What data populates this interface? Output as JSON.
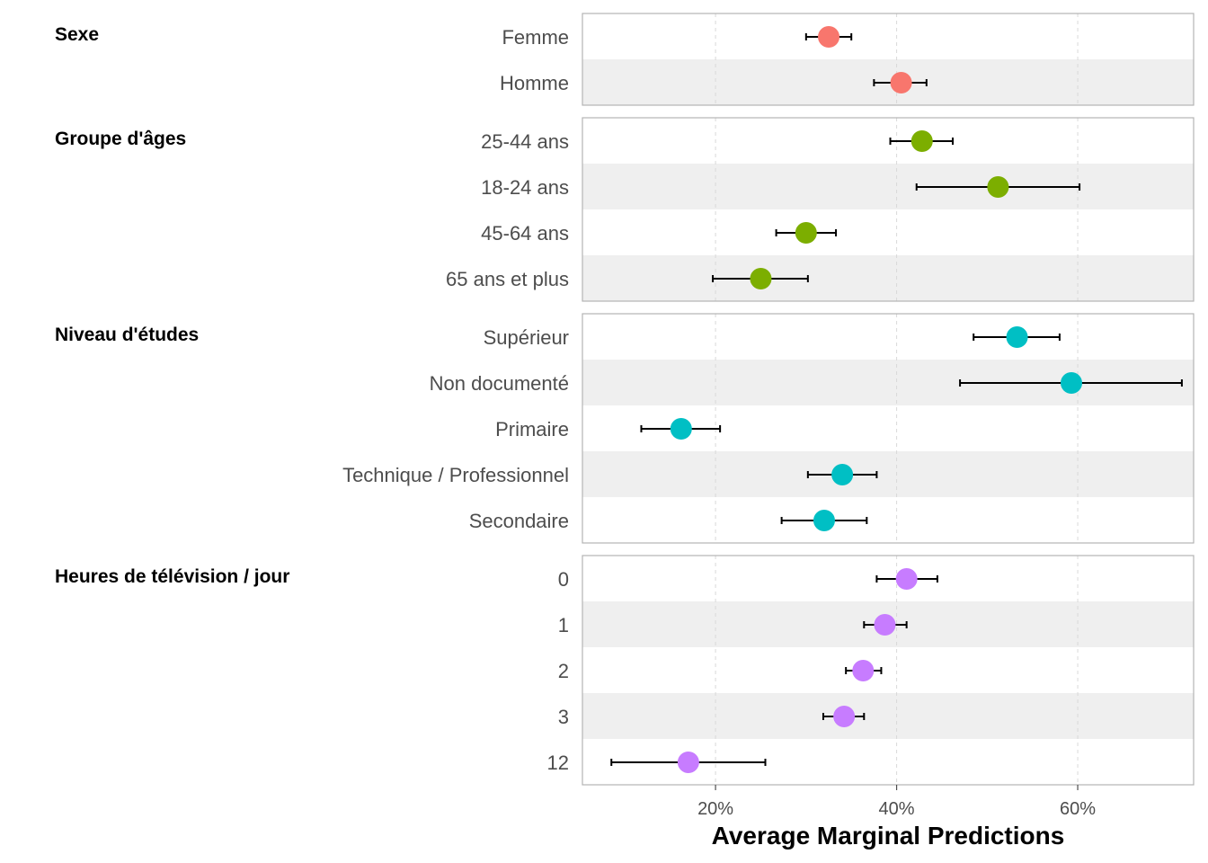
{
  "chart_data": {
    "type": "scatter",
    "xlabel": "Average Marginal Predictions",
    "xlim": [
      0.053,
      0.728
    ],
    "x_ticks": [
      0.2,
      0.4,
      0.6
    ],
    "x_tick_labels": [
      "20%",
      "40%",
      "60%"
    ],
    "grid": "vertical dashed major lines",
    "legend": "none",
    "error_bars": true,
    "groups": [
      {
        "name": "Sexe",
        "color": "#F8766D",
        "rows": [
          {
            "label": "Femme",
            "value": 0.325,
            "low": 0.3,
            "high": 0.35
          },
          {
            "label": "Homme",
            "value": 0.405,
            "low": 0.375,
            "high": 0.433
          }
        ]
      },
      {
        "name": "Groupe d'âges",
        "color": "#7CAE00",
        "rows": [
          {
            "label": "25-44 ans",
            "value": 0.428,
            "low": 0.393,
            "high": 0.462
          },
          {
            "label": "18-24 ans",
            "value": 0.512,
            "low": 0.422,
            "high": 0.602
          },
          {
            "label": "45-64 ans",
            "value": 0.3,
            "low": 0.267,
            "high": 0.333
          },
          {
            "label": "65 ans et plus",
            "value": 0.25,
            "low": 0.197,
            "high": 0.302
          }
        ]
      },
      {
        "name": "Niveau d'études",
        "color": "#00BFC4",
        "rows": [
          {
            "label": "Supérieur",
            "value": 0.533,
            "low": 0.485,
            "high": 0.58
          },
          {
            "label": "Non documenté",
            "value": 0.593,
            "low": 0.47,
            "high": 0.715
          },
          {
            "label": "Primaire",
            "value": 0.162,
            "low": 0.118,
            "high": 0.205
          },
          {
            "label": "Technique / Professionnel",
            "value": 0.34,
            "low": 0.302,
            "high": 0.378
          },
          {
            "label": "Secondaire",
            "value": 0.32,
            "low": 0.273,
            "high": 0.367
          }
        ]
      },
      {
        "name": "Heures de télévision / jour",
        "color": "#C77CFF",
        "rows": [
          {
            "label": "0",
            "value": 0.411,
            "low": 0.378,
            "high": 0.445
          },
          {
            "label": "1",
            "value": 0.387,
            "low": 0.364,
            "high": 0.411
          },
          {
            "label": "2",
            "value": 0.363,
            "low": 0.344,
            "high": 0.383
          },
          {
            "label": "3",
            "value": 0.342,
            "low": 0.319,
            "high": 0.364
          },
          {
            "label": "12",
            "value": 0.17,
            "low": 0.085,
            "high": 0.255
          }
        ]
      }
    ]
  }
}
